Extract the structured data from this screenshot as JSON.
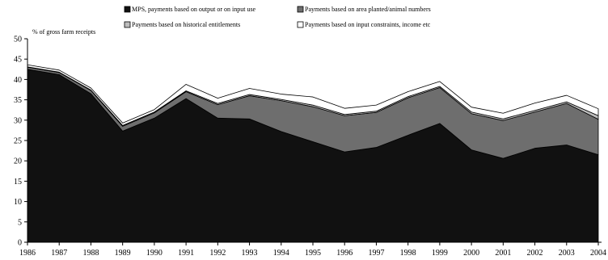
{
  "chart_data": {
    "type": "area",
    "stacked": true,
    "ylabel": "% of gross farm receipts",
    "ylim": [
      0,
      50
    ],
    "yticks": [
      0,
      5,
      10,
      15,
      20,
      25,
      30,
      35,
      40,
      45,
      50
    ],
    "legend_position": "top",
    "x": [
      "1986",
      "1987",
      "1988",
      "1989",
      "1990",
      "1991",
      "1992",
      "1993",
      "1994",
      "1995",
      "1996",
      "1997",
      "1998",
      "1999",
      "2000",
      "2001",
      "2002",
      "2003",
      "2004"
    ],
    "series": [
      {
        "name": "MPS, payments based on output or on input use",
        "color": "#111111",
        "values": [
          42.5,
          41.2,
          36.5,
          27.3,
          30.5,
          35.3,
          30.5,
          30.3,
          27.2,
          24.7,
          22.2,
          23.3,
          26.3,
          29.2,
          22.7,
          20.6,
          23.1,
          23.9,
          21.5
        ]
      },
      {
        "name": "Payments based on area planted/animal numbers",
        "color": "#6e6e6e",
        "values": [
          0.5,
          0.5,
          0.8,
          1.2,
          1.3,
          1.7,
          3.3,
          5.7,
          7.6,
          8.6,
          8.9,
          8.6,
          9.2,
          8.8,
          8.9,
          9.3,
          8.9,
          10.2,
          8.7
        ]
      },
      {
        "name": "Payments based on historical entitlements",
        "color": "#bdbdbd",
        "values": [
          0.1,
          0.1,
          0.1,
          0.2,
          0.2,
          0.2,
          0.3,
          0.3,
          0.3,
          0.4,
          0.3,
          0.3,
          0.3,
          0.3,
          0.4,
          0.4,
          0.4,
          0.4,
          0.9
        ]
      },
      {
        "name": "Payments based on input constraints, income etc",
        "color": "#ffffff",
        "values": [
          0.5,
          0.5,
          0.5,
          0.6,
          0.6,
          1.6,
          1.3,
          1.5,
          1.3,
          2.0,
          1.5,
          1.5,
          1.2,
          1.2,
          1.2,
          1.4,
          1.8,
          1.6,
          1.7
        ]
      }
    ]
  }
}
